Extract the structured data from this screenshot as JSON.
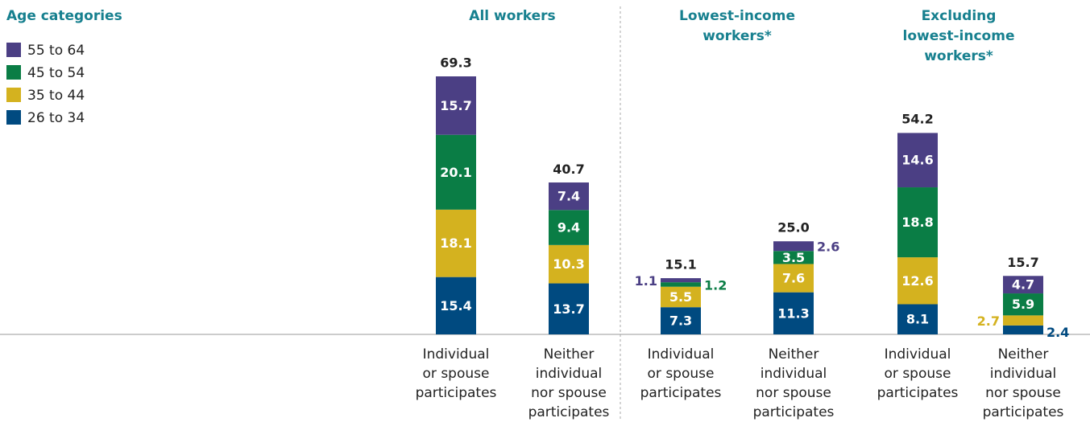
{
  "chart_data": {
    "type": "stacked-bar",
    "legend_title": "Age categories",
    "groups": [
      {
        "title": [
          "All workers"
        ]
      },
      {
        "title": [
          "Lowest-income",
          "workers*"
        ]
      },
      {
        "title": [
          "Excluding",
          "lowest-income",
          "workers*"
        ]
      }
    ],
    "categories": [
      [
        "Individual",
        "or spouse",
        "participates"
      ],
      [
        "Neither",
        "individual",
        "nor spouse",
        "participates"
      ],
      [
        "Individual",
        "or spouse",
        "participates"
      ],
      [
        "Neither",
        "individual",
        "nor spouse",
        "participates"
      ],
      [
        "Individual",
        "or spouse",
        "participates"
      ],
      [
        "Neither",
        "individual",
        "nor spouse",
        "participates"
      ]
    ],
    "totals": [
      69.3,
      40.7,
      15.1,
      25,
      54.2,
      15.7
    ],
    "total_labels": [
      "69.3",
      "40.7",
      "15.1",
      "25.0",
      "54.2",
      "15.7"
    ],
    "series": [
      {
        "name": "26 to 34",
        "color": "#004a80",
        "values": [
          15.4,
          13.7,
          7.3,
          11.3,
          8.1,
          2.4
        ]
      },
      {
        "name": "35 to 44",
        "color": "#d4b21f",
        "values": [
          18.1,
          10.3,
          5.5,
          7.6,
          12.6,
          2.7
        ]
      },
      {
        "name": "45 to 54",
        "color": "#0a7d45",
        "values": [
          20.1,
          9.4,
          1.2,
          3.5,
          18.8,
          5.9
        ]
      },
      {
        "name": "55 to 64",
        "color": "#4b3f84",
        "values": [
          15.7,
          7.4,
          1.1,
          2.6,
          14.6,
          4.7
        ]
      }
    ]
  }
}
